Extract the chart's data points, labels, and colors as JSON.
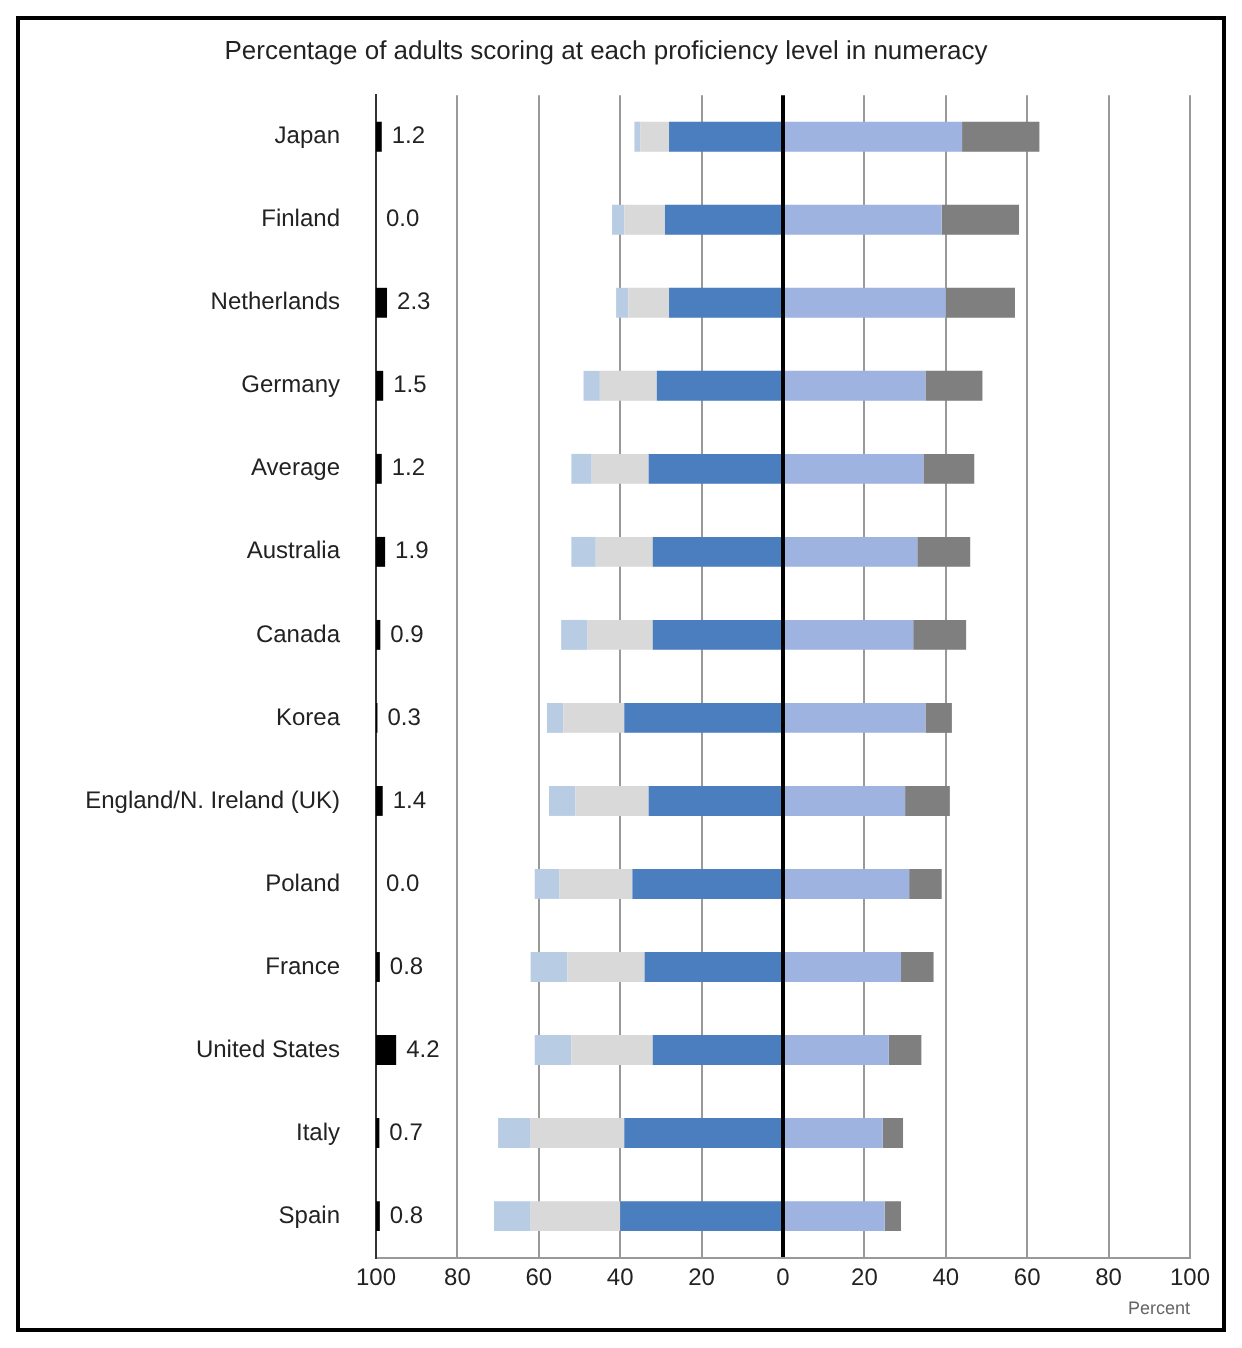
{
  "chart_data": [
    {
      "type": "bar",
      "title": "Percentage of adults scoring at each proficiency level in numeracy",
      "xlabel": "Percent",
      "orientation": "horizontal",
      "stacked": true,
      "categories": [
        null,
        null,
        null,
        null,
        null,
        null,
        null,
        null,
        null,
        null,
        null,
        null,
        null,
        null
      ],
      "series": [
        {
          "color": "#4a7ebf",
          "values": [
            -28,
            -29,
            -28,
            -31,
            -33,
            -32,
            -32,
            -39,
            -33,
            -37,
            -34,
            -32,
            -39,
            -40
          ]
        },
        {
          "color": "#d9d9d9",
          "values": [
            -7,
            -10,
            -10,
            -14,
            -14,
            -14,
            -16,
            -15,
            -18,
            -18,
            -19,
            -20,
            -23,
            -22
          ]
        },
        {
          "color": "#b8cce4",
          "values": [
            -1.5,
            -3,
            -3,
            -4,
            -5,
            -6,
            -6.5,
            -4,
            -6.5,
            -6,
            -9,
            -9,
            -8,
            -9
          ]
        },
        {
          "color": "#9fb3e0",
          "values": [
            44,
            39,
            40,
            35,
            34.5,
            33,
            32,
            35,
            30,
            31,
            29,
            26,
            24.5,
            25
          ]
        },
        {
          "color": "#7f7f7f",
          "values": [
            19,
            19,
            17,
            14,
            12.5,
            13,
            13,
            6.5,
            11,
            8,
            8,
            8,
            5,
            4
          ]
        }
      ],
      "xlim": [
        -100,
        100
      ],
      "xticks": [
        {
          "value": -100,
          "label": "100"
        },
        {
          "value": -80,
          "label": "80"
        },
        {
          "value": -60,
          "label": "60"
        },
        {
          "value": -40,
          "label": "40"
        },
        {
          "value": -20,
          "label": "20"
        },
        0,
        20,
        40,
        60,
        80,
        100
      ],
      "grid": "x",
      "legend": false,
      "tick_labels": "x"
    },
    {
      "type": "bar",
      "orientation": "horizontal",
      "categories": [
        "Japan",
        "Finland",
        "Netherlands",
        "Germany",
        "Average",
        "Australia",
        "Canada",
        "Korea",
        "England/N. Ireland (UK)",
        "Poland",
        "France",
        "United States",
        "Italy",
        "Spain"
      ],
      "series": [
        {
          "color": "#000000",
          "values": [
            1.2,
            0,
            2.3,
            1.5,
            1.2,
            1.9,
            0.9,
            0.3,
            1.4,
            0,
            0.8,
            4.2,
            0.7,
            0.8
          ],
          "value_labels": [
            "1.2",
            "0.0",
            "2.3",
            "1.5",
            "1.2",
            "1.9",
            "0.9",
            "0.3",
            "1.4",
            "0.0",
            "0.8",
            "4.2",
            "0.7",
            "0.8"
          ]
        }
      ],
      "legend": false,
      "tick_labels": "y"
    }
  ]
}
